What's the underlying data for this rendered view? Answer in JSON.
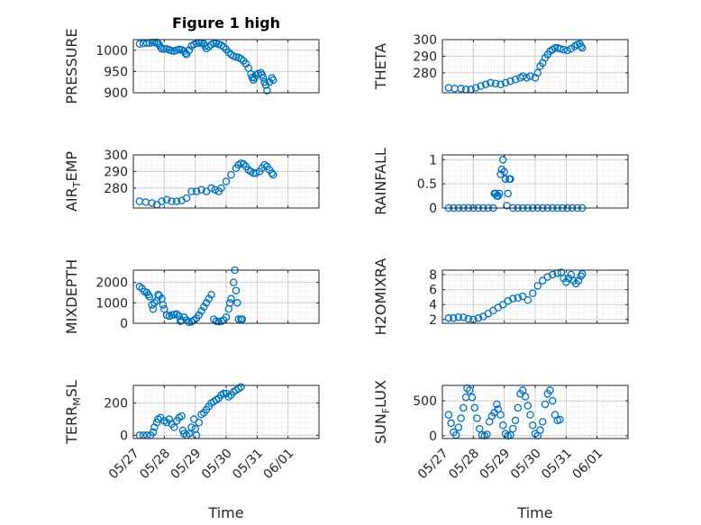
{
  "figure": {
    "title": "Figure 1 high",
    "xlabel": "Time"
  },
  "x_tick_labels": [
    "05/27",
    "05/28",
    "05/29",
    "05/30",
    "05/31",
    "06/01"
  ],
  "colors": {
    "marker": "#0072bd",
    "grid": "#dedede",
    "axis": "#262626"
  },
  "chart_data": [
    {
      "type": "scatter",
      "ylabel": "PRESSURE",
      "ylim": [
        900,
        1025
      ],
      "yticks": [
        900,
        950,
        1000
      ],
      "grid": true,
      "points": [
        [
          0.0,
          1015
        ],
        [
          0.03,
          1016
        ],
        [
          0.06,
          1017
        ],
        [
          0.08,
          1017
        ],
        [
          0.1,
          1018
        ],
        [
          0.12,
          1018
        ],
        [
          0.14,
          1018
        ],
        [
          0.15,
          1016
        ],
        [
          0.16,
          1012
        ],
        [
          0.17,
          1007
        ],
        [
          0.18,
          1003
        ],
        [
          0.2,
          1003
        ],
        [
          0.22,
          1003
        ],
        [
          0.24,
          1001
        ],
        [
          0.26,
          999
        ],
        [
          0.28,
          998
        ],
        [
          0.3,
          1000
        ],
        [
          0.32,
          1002
        ],
        [
          0.34,
          1001
        ],
        [
          0.36,
          998
        ],
        [
          0.37,
          993
        ],
        [
          0.38,
          990
        ],
        [
          0.4,
          1000
        ],
        [
          0.42,
          1010
        ],
        [
          0.44,
          1014
        ],
        [
          0.46,
          1016
        ],
        [
          0.48,
          1017
        ],
        [
          0.5,
          1017
        ],
        [
          0.52,
          1015
        ],
        [
          0.53,
          1010
        ],
        [
          0.54,
          1004
        ],
        [
          0.56,
          1008
        ],
        [
          0.58,
          1013
        ],
        [
          0.6,
          1016
        ],
        [
          0.62,
          1016
        ],
        [
          0.64,
          1014
        ],
        [
          0.66,
          1012
        ],
        [
          0.68,
          1008
        ],
        [
          0.7,
          1002
        ],
        [
          0.72,
          995
        ],
        [
          0.74,
          990
        ],
        [
          0.76,
          986
        ],
        [
          0.78,
          984
        ],
        [
          0.8,
          983
        ],
        [
          0.82,
          980
        ],
        [
          0.84,
          975
        ],
        [
          0.86,
          968
        ],
        [
          0.88,
          958
        ],
        [
          0.9,
          944
        ],
        [
          0.91,
          936
        ],
        [
          0.92,
          930
        ],
        [
          0.93,
          935
        ],
        [
          0.94,
          942
        ],
        [
          0.96,
          945
        ],
        [
          0.98,
          947
        ],
        [
          0.99,
          942
        ],
        [
          1.0,
          935
        ],
        [
          1.01,
          925
        ],
        [
          1.02,
          918
        ],
        [
          1.03,
          905
        ],
        [
          1.05,
          925
        ],
        [
          1.07,
          935
        ],
        [
          1.08,
          930
        ]
      ]
    },
    {
      "type": "scatter",
      "ylabel": "THETA",
      "ylim": [
        268,
        300
      ],
      "yticks": [
        280,
        290,
        300
      ],
      "grid": true,
      "points": [
        [
          0.0,
          271
        ],
        [
          0.05,
          270.5
        ],
        [
          0.1,
          270.5
        ],
        [
          0.14,
          270
        ],
        [
          0.18,
          270
        ],
        [
          0.22,
          271
        ],
        [
          0.26,
          272
        ],
        [
          0.3,
          273
        ],
        [
          0.34,
          274
        ],
        [
          0.38,
          273.5
        ],
        [
          0.42,
          273
        ],
        [
          0.46,
          274
        ],
        [
          0.5,
          275
        ],
        [
          0.54,
          276
        ],
        [
          0.58,
          277
        ],
        [
          0.6,
          278
        ],
        [
          0.63,
          277
        ],
        [
          0.66,
          278
        ],
        [
          0.7,
          277
        ],
        [
          0.72,
          280
        ],
        [
          0.74,
          284
        ],
        [
          0.76,
          286
        ],
        [
          0.78,
          289
        ],
        [
          0.8,
          291
        ],
        [
          0.82,
          293
        ],
        [
          0.84,
          294
        ],
        [
          0.86,
          295
        ],
        [
          0.88,
          295
        ],
        [
          0.9,
          294.5
        ],
        [
          0.93,
          294
        ],
        [
          0.96,
          293.5
        ],
        [
          0.99,
          294.5
        ],
        [
          1.02,
          296
        ],
        [
          1.04,
          297
        ],
        [
          1.06,
          297.5
        ],
        [
          1.07,
          296
        ],
        [
          1.08,
          295
        ]
      ]
    },
    {
      "type": "scatter",
      "ylabel": "AIR_TEMP",
      "ylim": [
        268,
        300
      ],
      "yticks": [
        280,
        290,
        300
      ],
      "grid": true,
      "points": [
        [
          0.0,
          272
        ],
        [
          0.05,
          271.5
        ],
        [
          0.1,
          271
        ],
        [
          0.14,
          270
        ],
        [
          0.18,
          272
        ],
        [
          0.22,
          273
        ],
        [
          0.26,
          272
        ],
        [
          0.3,
          272
        ],
        [
          0.34,
          272.5
        ],
        [
          0.38,
          274
        ],
        [
          0.42,
          278
        ],
        [
          0.46,
          278
        ],
        [
          0.5,
          279
        ],
        [
          0.54,
          278
        ],
        [
          0.58,
          280
        ],
        [
          0.61,
          279
        ],
        [
          0.64,
          278
        ],
        [
          0.66,
          280
        ],
        [
          0.7,
          284
        ],
        [
          0.74,
          288
        ],
        [
          0.78,
          292
        ],
        [
          0.8,
          294
        ],
        [
          0.82,
          295
        ],
        [
          0.84,
          294.5
        ],
        [
          0.86,
          293
        ],
        [
          0.88,
          291
        ],
        [
          0.9,
          290
        ],
        [
          0.92,
          289
        ],
        [
          0.94,
          289
        ],
        [
          0.97,
          290
        ],
        [
          0.99,
          292
        ],
        [
          1.01,
          294
        ],
        [
          1.03,
          293
        ],
        [
          1.05,
          291
        ],
        [
          1.07,
          289
        ],
        [
          1.08,
          288
        ]
      ]
    },
    {
      "type": "scatter",
      "ylabel": "RAINFALL",
      "ylim": [
        0,
        1.1
      ],
      "yticks": [
        0,
        0.5,
        1
      ],
      "grid": true,
      "points": [
        [
          0.0,
          0
        ],
        [
          0.04,
          0
        ],
        [
          0.08,
          0
        ],
        [
          0.12,
          0
        ],
        [
          0.16,
          0
        ],
        [
          0.2,
          0
        ],
        [
          0.24,
          0
        ],
        [
          0.28,
          0
        ],
        [
          0.32,
          0
        ],
        [
          0.36,
          0
        ],
        [
          0.37,
          0.3
        ],
        [
          0.38,
          0.3
        ],
        [
          0.39,
          0.25
        ],
        [
          0.4,
          0.25
        ],
        [
          0.41,
          0.3
        ],
        [
          0.42,
          0.7
        ],
        [
          0.43,
          0.8
        ],
        [
          0.44,
          1.0
        ],
        [
          0.45,
          0.75
        ],
        [
          0.46,
          0.6
        ],
        [
          0.47,
          0.05
        ],
        [
          0.48,
          0.3
        ],
        [
          0.49,
          0.6
        ],
        [
          0.5,
          0.6
        ],
        [
          0.52,
          0
        ],
        [
          0.56,
          0
        ],
        [
          0.6,
          0
        ],
        [
          0.64,
          0
        ],
        [
          0.68,
          0
        ],
        [
          0.72,
          0
        ],
        [
          0.76,
          0
        ],
        [
          0.8,
          0
        ],
        [
          0.84,
          0
        ],
        [
          0.88,
          0
        ],
        [
          0.92,
          0
        ],
        [
          0.96,
          0
        ],
        [
          1.0,
          0
        ],
        [
          1.04,
          0
        ],
        [
          1.08,
          0
        ]
      ]
    },
    {
      "type": "scatter",
      "ylabel": "MIXDEPTH",
      "ylim": [
        0,
        2600
      ],
      "yticks": [
        0,
        1000,
        2000
      ],
      "grid": true,
      "points": [
        [
          0.0,
          1800
        ],
        [
          0.02,
          1700
        ],
        [
          0.04,
          1550
        ],
        [
          0.06,
          1500
        ],
        [
          0.07,
          1400
        ],
        [
          0.08,
          1300
        ],
        [
          0.1,
          900
        ],
        [
          0.11,
          700
        ],
        [
          0.12,
          1000
        ],
        [
          0.14,
          1100
        ],
        [
          0.15,
          1400
        ],
        [
          0.16,
          1350
        ],
        [
          0.18,
          1200
        ],
        [
          0.19,
          900
        ],
        [
          0.2,
          700
        ],
        [
          0.22,
          400
        ],
        [
          0.24,
          350
        ],
        [
          0.26,
          400
        ],
        [
          0.28,
          420
        ],
        [
          0.3,
          450
        ],
        [
          0.32,
          350
        ],
        [
          0.33,
          100
        ],
        [
          0.34,
          150
        ],
        [
          0.36,
          300
        ],
        [
          0.38,
          150
        ],
        [
          0.4,
          50
        ],
        [
          0.42,
          80
        ],
        [
          0.44,
          150
        ],
        [
          0.46,
          250
        ],
        [
          0.48,
          400
        ],
        [
          0.5,
          600
        ],
        [
          0.52,
          800
        ],
        [
          0.54,
          1000
        ],
        [
          0.56,
          1200
        ],
        [
          0.58,
          1400
        ],
        [
          0.6,
          200
        ],
        [
          0.62,
          100
        ],
        [
          0.64,
          80
        ],
        [
          0.66,
          100
        ],
        [
          0.68,
          150
        ],
        [
          0.7,
          300
        ],
        [
          0.72,
          700
        ],
        [
          0.73,
          1000
        ],
        [
          0.74,
          1200
        ],
        [
          0.76,
          2000
        ],
        [
          0.77,
          2600
        ],
        [
          0.78,
          1600
        ],
        [
          0.79,
          1000
        ],
        [
          0.8,
          200
        ],
        [
          0.82,
          200
        ],
        [
          0.83,
          200
        ]
      ]
    },
    {
      "type": "scatter",
      "ylabel": "H2OMIXRA",
      "ylim": [
        1.5,
        8.6
      ],
      "yticks": [
        2,
        4,
        6,
        8
      ],
      "grid": true,
      "points": [
        [
          0.0,
          2.2
        ],
        [
          0.04,
          2.2
        ],
        [
          0.08,
          2.3
        ],
        [
          0.12,
          2.3
        ],
        [
          0.16,
          2.1
        ],
        [
          0.2,
          2.0
        ],
        [
          0.24,
          2.2
        ],
        [
          0.28,
          2.4
        ],
        [
          0.32,
          2.8
        ],
        [
          0.36,
          3.2
        ],
        [
          0.4,
          3.6
        ],
        [
          0.44,
          4.0
        ],
        [
          0.48,
          4.5
        ],
        [
          0.52,
          4.8
        ],
        [
          0.56,
          4.9
        ],
        [
          0.6,
          5.1
        ],
        [
          0.64,
          4.6
        ],
        [
          0.68,
          5.5
        ],
        [
          0.72,
          6.5
        ],
        [
          0.76,
          7.2
        ],
        [
          0.8,
          7.7
        ],
        [
          0.84,
          8.0
        ],
        [
          0.88,
          8.2
        ],
        [
          0.91,
          8.3
        ],
        [
          0.93,
          7.5
        ],
        [
          0.95,
          7.0
        ],
        [
          0.97,
          7.5
        ],
        [
          0.99,
          8.0
        ],
        [
          1.01,
          7.2
        ],
        [
          1.03,
          6.8
        ],
        [
          1.05,
          7.2
        ],
        [
          1.07,
          7.8
        ],
        [
          1.08,
          8.1
        ]
      ]
    },
    {
      "type": "scatter",
      "ylabel": "TERR_MSL",
      "ylim": [
        -20,
        310
      ],
      "yticks": [
        0,
        200
      ],
      "grid": true,
      "points": [
        [
          0.0,
          0
        ],
        [
          0.03,
          0
        ],
        [
          0.06,
          0
        ],
        [
          0.09,
          0
        ],
        [
          0.11,
          20
        ],
        [
          0.12,
          50
        ],
        [
          0.14,
          80
        ],
        [
          0.15,
          100
        ],
        [
          0.17,
          110
        ],
        [
          0.2,
          90
        ],
        [
          0.22,
          80
        ],
        [
          0.24,
          100
        ],
        [
          0.26,
          70
        ],
        [
          0.28,
          50
        ],
        [
          0.3,
          90
        ],
        [
          0.32,
          110
        ],
        [
          0.34,
          120
        ],
        [
          0.35,
          30
        ],
        [
          0.36,
          10
        ],
        [
          0.38,
          0
        ],
        [
          0.4,
          10
        ],
        [
          0.42,
          50
        ],
        [
          0.44,
          100
        ],
        [
          0.45,
          40
        ],
        [
          0.46,
          0
        ],
        [
          0.48,
          80
        ],
        [
          0.5,
          130
        ],
        [
          0.52,
          140
        ],
        [
          0.54,
          160
        ],
        [
          0.56,
          180
        ],
        [
          0.58,
          200
        ],
        [
          0.6,
          210
        ],
        [
          0.62,
          220
        ],
        [
          0.64,
          230
        ],
        [
          0.66,
          250
        ],
        [
          0.68,
          260
        ],
        [
          0.7,
          260
        ],
        [
          0.72,
          240
        ],
        [
          0.74,
          250
        ],
        [
          0.76,
          270
        ],
        [
          0.78,
          280
        ],
        [
          0.8,
          290
        ],
        [
          0.82,
          300
        ]
      ]
    },
    {
      "type": "scatter",
      "ylabel": "SUN_FLUX",
      "ylim": [
        -40,
        720
      ],
      "yticks": [
        0,
        500
      ],
      "grid": true,
      "points": [
        [
          0.0,
          300
        ],
        [
          0.02,
          180
        ],
        [
          0.04,
          50
        ],
        [
          0.06,
          10
        ],
        [
          0.08,
          120
        ],
        [
          0.1,
          250
        ],
        [
          0.12,
          400
        ],
        [
          0.14,
          550
        ],
        [
          0.15,
          680
        ],
        [
          0.17,
          650
        ],
        [
          0.19,
          550
        ],
        [
          0.21,
          400
        ],
        [
          0.23,
          250
        ],
        [
          0.25,
          100
        ],
        [
          0.27,
          10
        ],
        [
          0.29,
          0
        ],
        [
          0.31,
          20
        ],
        [
          0.33,
          200
        ],
        [
          0.35,
          280
        ],
        [
          0.37,
          330
        ],
        [
          0.39,
          450
        ],
        [
          0.4,
          380
        ],
        [
          0.42,
          300
        ],
        [
          0.44,
          150
        ],
        [
          0.46,
          30
        ],
        [
          0.48,
          0
        ],
        [
          0.5,
          10
        ],
        [
          0.52,
          100
        ],
        [
          0.54,
          220
        ],
        [
          0.56,
          400
        ],
        [
          0.58,
          600
        ],
        [
          0.6,
          650
        ],
        [
          0.62,
          560
        ],
        [
          0.64,
          430
        ],
        [
          0.66,
          300
        ],
        [
          0.68,
          150
        ],
        [
          0.7,
          30
        ],
        [
          0.72,
          0
        ],
        [
          0.74,
          80
        ],
        [
          0.76,
          200
        ],
        [
          0.78,
          450
        ],
        [
          0.8,
          600
        ],
        [
          0.82,
          650
        ],
        [
          0.84,
          500
        ],
        [
          0.86,
          300
        ],
        [
          0.88,
          220
        ],
        [
          0.9,
          230
        ]
      ]
    }
  ]
}
